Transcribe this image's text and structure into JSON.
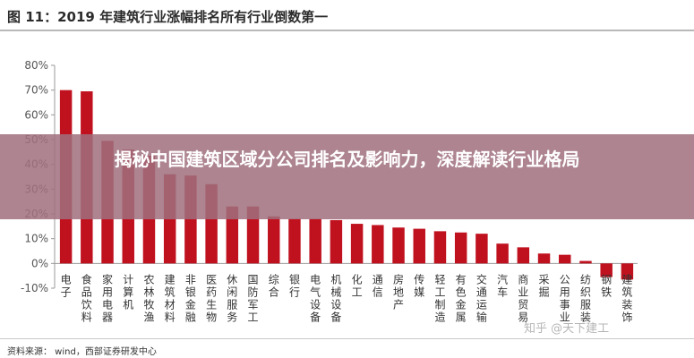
{
  "header": {
    "title": "图 11：2019 年建筑行业涨幅排名所有行业倒数第一"
  },
  "overlay": {
    "headline": "揭秘中国建筑区域分公司排名及影响力，深度解读行业格局"
  },
  "source": {
    "text": "资料来源：    wind，西部证券研发中心"
  },
  "watermark": {
    "text": "知乎 @天下建工"
  },
  "colors": {
    "bar": "#c0111f",
    "overlay": "#a0707e"
  },
  "chart_data": {
    "type": "bar",
    "title": "图 11：2019 年建筑行业涨幅排名所有行业倒数第一",
    "xlabel": "",
    "ylabel": "",
    "ylim": [
      -10,
      80
    ],
    "yticks": [
      "80%",
      "70%",
      "60%",
      "50%",
      "40%",
      "30%",
      "20%",
      "10%",
      "0%",
      "-10%"
    ],
    "grid": false,
    "legend": "none",
    "categories": [
      "电子",
      "食品饮料",
      "家用电器",
      "计算机",
      "农林牧渔",
      "建筑材料",
      "非银金融",
      "医药生物",
      "休闲服务",
      "国防军工",
      "综合",
      "银行",
      "电气设备",
      "机械设备",
      "化工",
      "通信",
      "房地产",
      "传媒",
      "轻工制造",
      "有色金属",
      "交通运输",
      "汽车",
      "商业贸易",
      "采掘",
      "公用事业",
      "纺织服装",
      "钢铁",
      "建筑装饰"
    ],
    "values": [
      70.0,
      69.5,
      49.5,
      46.0,
      43.5,
      36.0,
      35.5,
      32.0,
      23.0,
      23.0,
      19.0,
      18.0,
      18.0,
      17.5,
      16.0,
      15.5,
      14.5,
      14.0,
      13.0,
      12.5,
      12.0,
      8.0,
      6.5,
      4.0,
      3.5,
      1.0,
      -5.5,
      -6.5
    ]
  }
}
